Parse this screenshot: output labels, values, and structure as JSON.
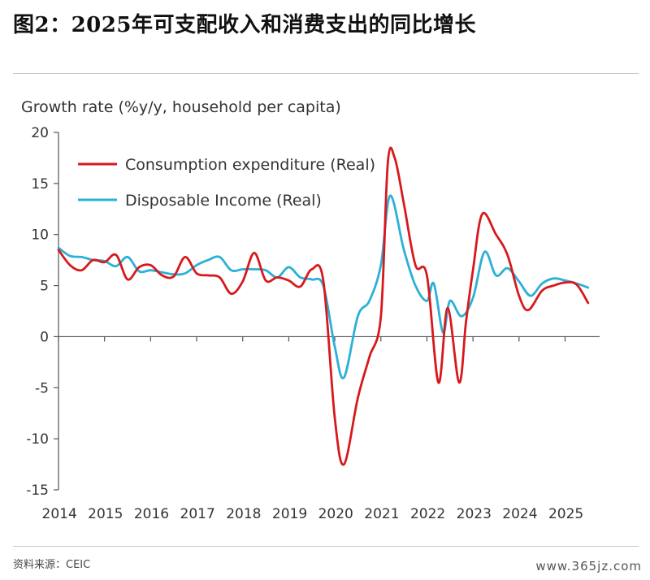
{
  "page": {
    "title": "图2：2025年可支配收入和消费支出的同比增长",
    "source": "资料来源：CEIC",
    "watermark": "www.365jz.com"
  },
  "chart_data": {
    "type": "line",
    "title": "图2：2025年可支配收入和消费支出的同比增长",
    "ylabel": "Growth rate (%y/y,  household per capita)",
    "xlabel": "",
    "ylim": [
      -15,
      20
    ],
    "xlim": [
      2014.0,
      2025.75
    ],
    "yticks": [
      20,
      15,
      10,
      5,
      0,
      -5,
      -10,
      -15
    ],
    "xtick_labels": [
      "2014",
      "2015",
      "2016",
      "2017",
      "2018",
      "2019",
      "2020",
      "2021",
      "2022",
      "2023",
      "2024",
      "2025"
    ],
    "legend_position": "top-left",
    "series": [
      {
        "name": "Consumption expenditure (Real)",
        "color": "#d7191c",
        "points": [
          [
            2014.0,
            8.5
          ],
          [
            2014.25,
            7.0
          ],
          [
            2014.5,
            6.5
          ],
          [
            2014.75,
            7.5
          ],
          [
            2015.0,
            7.3
          ],
          [
            2015.25,
            8.0
          ],
          [
            2015.5,
            5.6
          ],
          [
            2015.75,
            6.8
          ],
          [
            2016.0,
            7.0
          ],
          [
            2016.25,
            6.0
          ],
          [
            2016.5,
            5.9
          ],
          [
            2016.75,
            7.8
          ],
          [
            2017.0,
            6.2
          ],
          [
            2017.25,
            6.0
          ],
          [
            2017.5,
            5.8
          ],
          [
            2017.75,
            4.2
          ],
          [
            2018.0,
            5.4
          ],
          [
            2018.25,
            8.2
          ],
          [
            2018.5,
            5.5
          ],
          [
            2018.75,
            5.8
          ],
          [
            2019.0,
            5.5
          ],
          [
            2019.25,
            4.9
          ],
          [
            2019.5,
            6.6
          ],
          [
            2019.75,
            5.5
          ],
          [
            2020.0,
            -8.0
          ],
          [
            2020.2,
            -12.5
          ],
          [
            2020.5,
            -6.0
          ],
          [
            2020.75,
            -2.0
          ],
          [
            2021.0,
            2.0
          ],
          [
            2021.15,
            17.0
          ],
          [
            2021.3,
            17.5
          ],
          [
            2021.5,
            13.0
          ],
          [
            2021.75,
            7.0
          ],
          [
            2022.0,
            6.0
          ],
          [
            2022.25,
            -4.5
          ],
          [
            2022.45,
            2.8
          ],
          [
            2022.7,
            -4.5
          ],
          [
            2022.85,
            1.5
          ],
          [
            2023.0,
            6.5
          ],
          [
            2023.2,
            12.0
          ],
          [
            2023.5,
            10.0
          ],
          [
            2023.75,
            8.0
          ],
          [
            2024.0,
            4.0
          ],
          [
            2024.2,
            2.6
          ],
          [
            2024.5,
            4.5
          ],
          [
            2024.75,
            5.0
          ],
          [
            2025.0,
            5.3
          ],
          [
            2025.25,
            5.1
          ],
          [
            2025.5,
            3.3
          ]
        ]
      },
      {
        "name": "Disposable Income (Real)",
        "color": "#2bb0d6",
        "points": [
          [
            2014.0,
            8.7
          ],
          [
            2014.25,
            7.9
          ],
          [
            2014.5,
            7.8
          ],
          [
            2014.75,
            7.5
          ],
          [
            2015.0,
            7.4
          ],
          [
            2015.25,
            6.9
          ],
          [
            2015.5,
            7.8
          ],
          [
            2015.75,
            6.4
          ],
          [
            2016.0,
            6.5
          ],
          [
            2016.25,
            6.3
          ],
          [
            2016.5,
            6.1
          ],
          [
            2016.75,
            6.2
          ],
          [
            2017.0,
            7.0
          ],
          [
            2017.25,
            7.5
          ],
          [
            2017.5,
            7.8
          ],
          [
            2017.75,
            6.5
          ],
          [
            2018.0,
            6.6
          ],
          [
            2018.25,
            6.6
          ],
          [
            2018.5,
            6.5
          ],
          [
            2018.75,
            5.8
          ],
          [
            2019.0,
            6.8
          ],
          [
            2019.25,
            5.8
          ],
          [
            2019.5,
            5.6
          ],
          [
            2019.75,
            5.0
          ],
          [
            2020.0,
            -1.0
          ],
          [
            2020.2,
            -4.0
          ],
          [
            2020.5,
            2.0
          ],
          [
            2020.75,
            3.5
          ],
          [
            2021.0,
            7.0
          ],
          [
            2021.2,
            13.8
          ],
          [
            2021.5,
            8.5
          ],
          [
            2021.75,
            5.0
          ],
          [
            2022.0,
            3.5
          ],
          [
            2022.15,
            5.2
          ],
          [
            2022.35,
            0.4
          ],
          [
            2022.5,
            3.5
          ],
          [
            2022.75,
            2.0
          ],
          [
            2023.0,
            3.8
          ],
          [
            2023.25,
            8.3
          ],
          [
            2023.5,
            6.0
          ],
          [
            2023.75,
            6.7
          ],
          [
            2024.0,
            5.4
          ],
          [
            2024.25,
            4.0
          ],
          [
            2024.5,
            5.2
          ],
          [
            2024.75,
            5.7
          ],
          [
            2025.0,
            5.5
          ],
          [
            2025.25,
            5.2
          ],
          [
            2025.5,
            4.8
          ]
        ]
      }
    ]
  }
}
